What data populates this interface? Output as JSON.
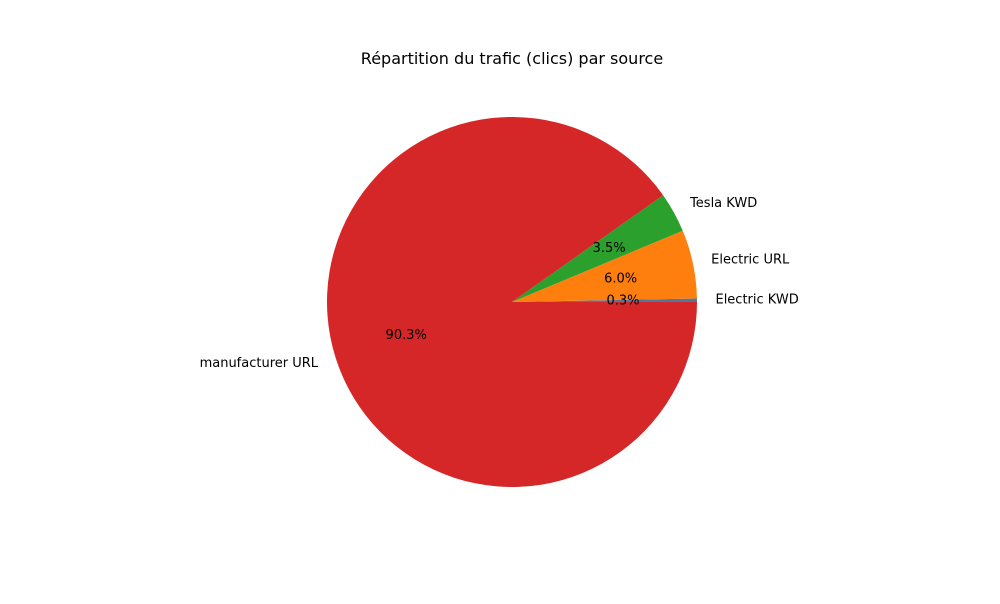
{
  "chart_data": {
    "type": "pie",
    "title": "Répartition du trafic (clics) par source",
    "slices": [
      {
        "label": "Electric KWD",
        "value": 0.3,
        "pct_label": "0.3%",
        "color": "#4e79a7"
      },
      {
        "label": "Electric URL",
        "value": 6.0,
        "pct_label": "6.0%",
        "color": "#ff7f0e"
      },
      {
        "label": "Tesla KWD",
        "value": 3.5,
        "pct_label": "3.5%",
        "color": "#2ca02c"
      },
      {
        "label": "manufacturer URL",
        "value": 90.3,
        "pct_label": "90.3%",
        "color": "#d62728"
      }
    ],
    "legend": "none"
  }
}
